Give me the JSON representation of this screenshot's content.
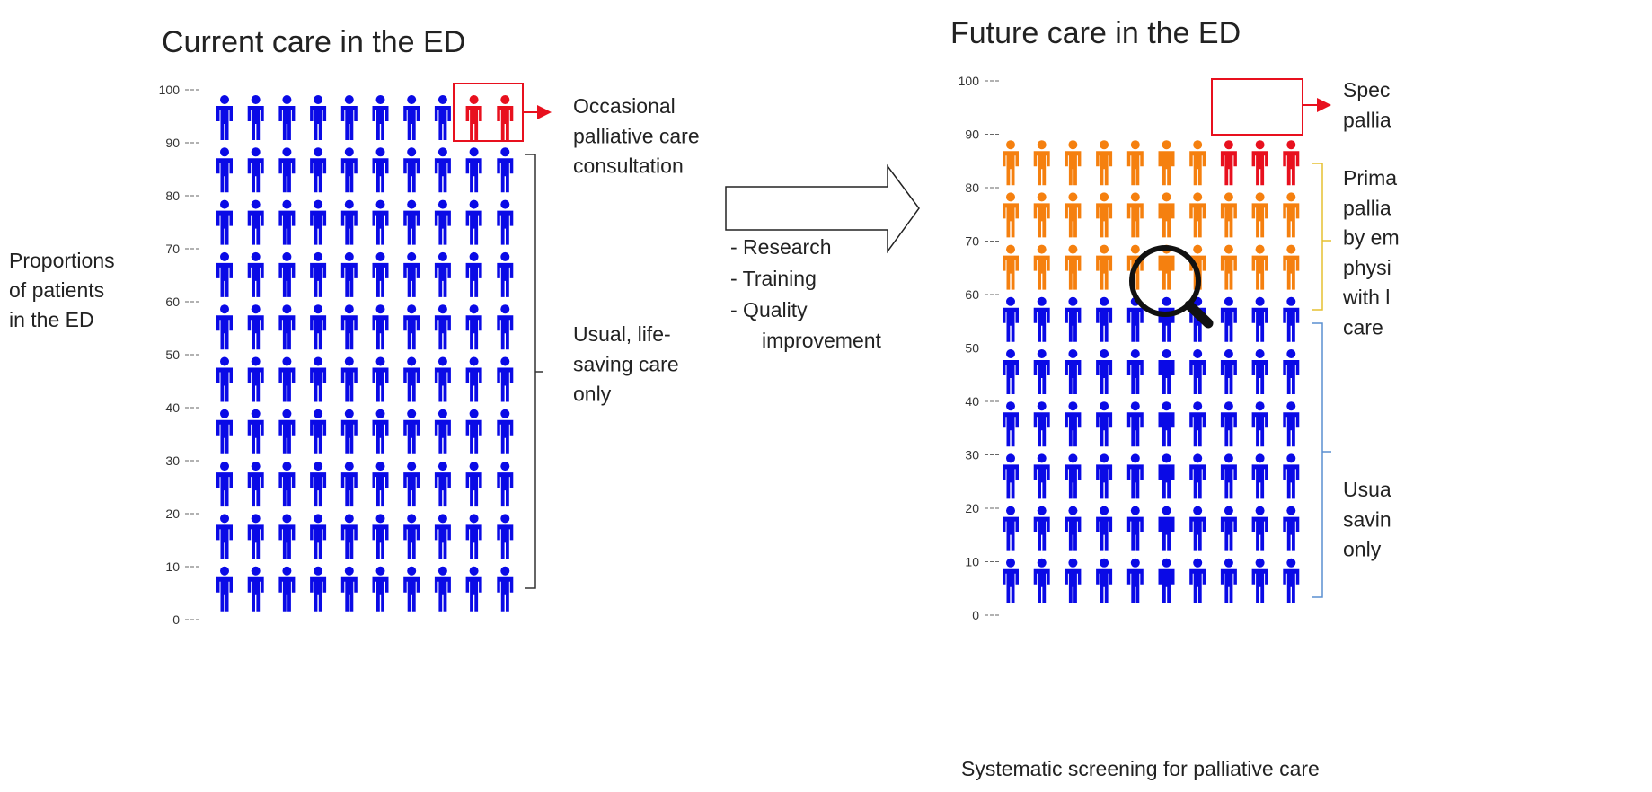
{
  "panels": [
    {
      "title": "Current care in the ED",
      "yticks": [
        0,
        10,
        20,
        30,
        40,
        50,
        60,
        70,
        80,
        90,
        100
      ],
      "groups": [
        {
          "lines": [
            "Usual, life-",
            "saving care",
            "only"
          ],
          "count": 98,
          "color": "#0a0ae6"
        },
        {
          "lines": [
            "Occasional",
            "palliative care",
            "consultation"
          ],
          "count": 2,
          "color": "#e8101e"
        }
      ]
    },
    {
      "title": "Future care in the ED",
      "yticks": [
        0,
        10,
        20,
        30,
        40,
        50,
        60,
        70,
        80,
        90,
        100
      ],
      "groups": [
        {
          "lines": [
            "Usua",
            "savin",
            "only"
          ],
          "count": 60,
          "color": "#0a0ae6"
        },
        {
          "lines": [
            "Prima",
            "pallia",
            "by em",
            "physi",
            "with l",
            "care"
          ],
          "count": 27,
          "color": "#f5800f"
        },
        {
          "lines": [
            "Spec",
            "pallia"
          ],
          "count": 3,
          "color": "#e8101e"
        }
      ],
      "caption": "Systematic screening for palliative care"
    }
  ],
  "axis_label": [
    "Proportions",
    "of patients",
    "in the ED"
  ],
  "transition": [
    "- Research",
    "- Training",
    "- Quality",
    "improvement"
  ]
}
